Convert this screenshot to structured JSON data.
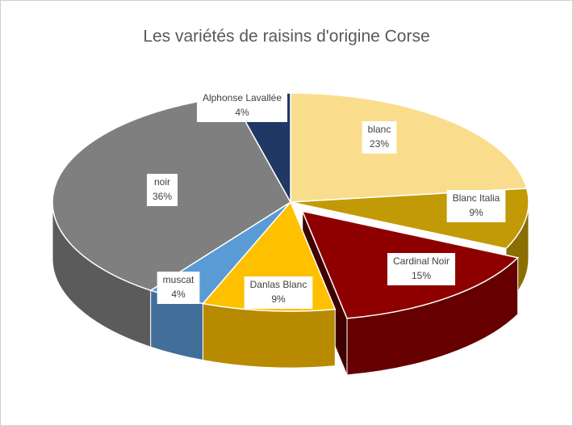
{
  "chart_data": {
    "type": "pie",
    "title": "Les variétés de raisins d'origine Corse",
    "categories": [
      "blanc",
      "Blanc Italia",
      "Cardinal Noir",
      "Danlas Blanc",
      "muscat",
      "noir",
      "Alphonse Lavallée"
    ],
    "values": [
      23,
      9,
      15,
      9,
      4,
      36,
      4
    ],
    "value_labels": [
      "23%",
      "9%",
      "15%",
      "9%",
      "4%",
      "36%",
      "4%"
    ],
    "colors": [
      "#fadd8c",
      "#c19a06",
      "#8e0000",
      "#ffc000",
      "#5b9bd5",
      "#7f7f7f",
      "#203864"
    ],
    "exploded": [
      "Cardinal Noir"
    ]
  }
}
